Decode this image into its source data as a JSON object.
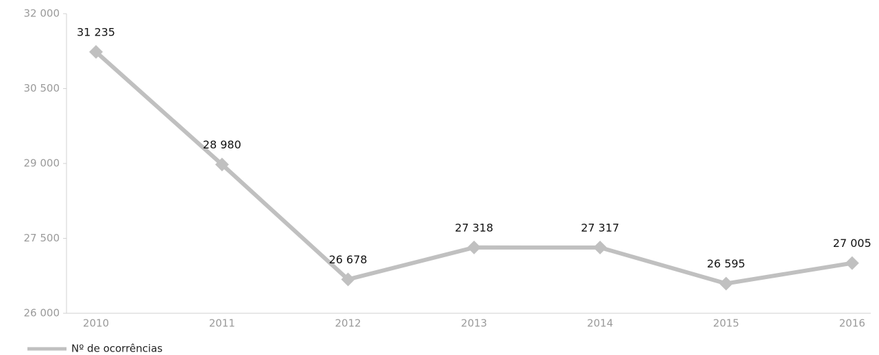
{
  "chart_data": {
    "type": "line",
    "categories": [
      "2010",
      "2011",
      "2012",
      "2013",
      "2014",
      "2015",
      "2016"
    ],
    "series": [
      {
        "name": "Nº de ocorrências",
        "color": "#c0c0c0",
        "values": [
          31235,
          28980,
          26678,
          27318,
          27317,
          26595,
          27005
        ],
        "value_labels": [
          "31 235",
          "28 980",
          "26 678",
          "27 318",
          "27 317",
          "26 595",
          "27 005"
        ]
      }
    ],
    "ylim": [
      26000,
      32000
    ],
    "yticks": [
      {
        "value": 26000,
        "label": "26 000"
      },
      {
        "value": 27500,
        "label": "27 500"
      },
      {
        "value": 29000,
        "label": "29 000"
      },
      {
        "value": 30500,
        "label": "30 500"
      },
      {
        "value": 32000,
        "label": "32 000"
      }
    ],
    "legend": "bottom-left"
  }
}
